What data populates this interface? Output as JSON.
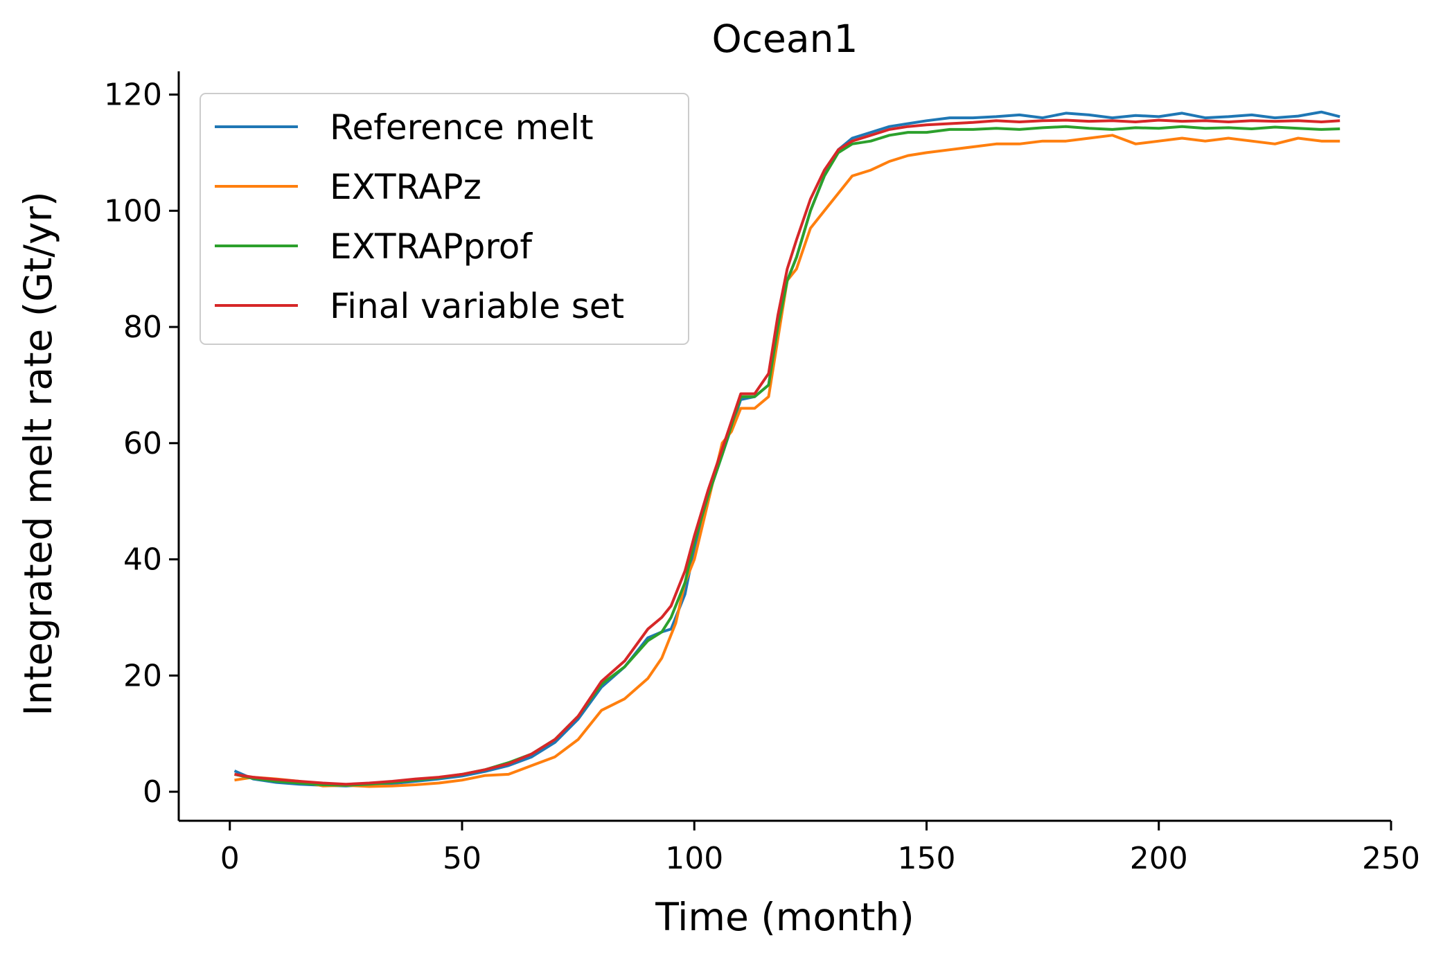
{
  "chart_data": {
    "type": "line",
    "title": "Ocean1",
    "xlabel": "Time (month)",
    "ylabel": "Integrated melt rate (Gt/yr)",
    "xlim": [
      -11,
      250
    ],
    "ylim": [
      -5,
      124
    ],
    "xticks": [
      0,
      50,
      100,
      150,
      200,
      250
    ],
    "yticks": [
      0,
      20,
      40,
      60,
      80,
      100,
      120
    ],
    "grid": false,
    "legend_position": "upper-left",
    "series": [
      {
        "name": "Reference melt",
        "color": "#1f77b4",
        "x": [
          1,
          5,
          10,
          15,
          20,
          25,
          30,
          35,
          40,
          45,
          50,
          55,
          60,
          65,
          70,
          75,
          80,
          85,
          88,
          90,
          93,
          95,
          98,
          100,
          103,
          106,
          110,
          113,
          116,
          118,
          120,
          122,
          125,
          128,
          131,
          134,
          138,
          142,
          146,
          150,
          155,
          160,
          165,
          170,
          175,
          180,
          185,
          190,
          195,
          200,
          205,
          210,
          215,
          220,
          225,
          230,
          235,
          239
        ],
        "y": [
          3.6,
          2.2,
          1.6,
          1.3,
          1.1,
          1.0,
          1.2,
          1.4,
          1.8,
          2.2,
          2.7,
          3.5,
          4.5,
          6.0,
          8.5,
          12.5,
          18.0,
          21.5,
          24.5,
          26.5,
          27.5,
          28.0,
          34.0,
          42.0,
          51.0,
          58.0,
          67.5,
          68.0,
          70.0,
          80.0,
          88.0,
          92.0,
          100.0,
          106.0,
          110.5,
          112.5,
          113.5,
          114.5,
          115.0,
          115.5,
          116.0,
          116.0,
          116.2,
          116.5,
          116.0,
          116.8,
          116.5,
          116.0,
          116.4,
          116.2,
          116.8,
          116.0,
          116.2,
          116.5,
          116.0,
          116.3,
          117.0,
          116.2
        ]
      },
      {
        "name": "EXTRAPz",
        "color": "#ff7f0e",
        "x": [
          1,
          5,
          10,
          15,
          20,
          25,
          30,
          35,
          40,
          45,
          50,
          55,
          60,
          65,
          70,
          75,
          80,
          85,
          90,
          93,
          96,
          98,
          100,
          103,
          106,
          108,
          110,
          113,
          116,
          118,
          120,
          122,
          125,
          128,
          131,
          134,
          138,
          142,
          146,
          150,
          155,
          160,
          165,
          170,
          175,
          180,
          185,
          190,
          195,
          200,
          205,
          210,
          215,
          220,
          225,
          230,
          235,
          239
        ],
        "y": [
          2.0,
          2.5,
          2.2,
          1.8,
          1.0,
          1.1,
          0.9,
          1.0,
          1.2,
          1.5,
          2.0,
          2.8,
          3.0,
          4.5,
          6.0,
          9.0,
          14.0,
          16.0,
          19.5,
          23.0,
          29.0,
          36.0,
          40.0,
          50.0,
          60.0,
          62.0,
          66.0,
          66.0,
          68.0,
          78.0,
          88.0,
          90.0,
          97.0,
          100.0,
          103.0,
          106.0,
          107.0,
          108.5,
          109.5,
          110.0,
          110.5,
          111.0,
          111.5,
          111.5,
          112.0,
          112.0,
          112.5,
          113.0,
          111.5,
          112.0,
          112.5,
          112.0,
          112.5,
          112.0,
          111.5,
          112.5,
          112.0,
          112.0
        ]
      },
      {
        "name": "EXTRAPprof",
        "color": "#2ca02c",
        "x": [
          1,
          5,
          10,
          15,
          20,
          25,
          30,
          35,
          40,
          45,
          50,
          55,
          60,
          65,
          70,
          75,
          80,
          85,
          90,
          93,
          95,
          98,
          100,
          103,
          106,
          110,
          113,
          116,
          118,
          120,
          122,
          125,
          128,
          131,
          134,
          138,
          142,
          146,
          150,
          155,
          160,
          165,
          170,
          175,
          180,
          185,
          190,
          195,
          200,
          205,
          210,
          215,
          220,
          225,
          230,
          235,
          239
        ],
        "y": [
          3.0,
          2.3,
          1.8,
          1.5,
          1.2,
          1.1,
          1.3,
          1.6,
          2.0,
          2.4,
          3.0,
          3.8,
          5.0,
          6.5,
          9.0,
          13.0,
          18.5,
          21.5,
          26.0,
          27.5,
          30.0,
          36.0,
          43.0,
          51.0,
          58.0,
          68.0,
          68.0,
          70.0,
          80.0,
          88.0,
          92.0,
          100.0,
          106.0,
          110.0,
          111.5,
          112.0,
          113.0,
          113.5,
          113.5,
          114.0,
          114.0,
          114.2,
          114.0,
          114.3,
          114.5,
          114.2,
          114.0,
          114.3,
          114.2,
          114.5,
          114.2,
          114.3,
          114.1,
          114.4,
          114.2,
          114.0,
          114.1
        ]
      },
      {
        "name": "Final variable set",
        "color": "#d62728",
        "x": [
          1,
          5,
          10,
          15,
          20,
          25,
          30,
          35,
          40,
          45,
          50,
          55,
          60,
          65,
          70,
          75,
          80,
          85,
          90,
          93,
          95,
          98,
          100,
          103,
          106,
          110,
          113,
          116,
          118,
          120,
          122,
          125,
          128,
          131,
          134,
          138,
          142,
          146,
          150,
          155,
          160,
          165,
          170,
          175,
          180,
          185,
          190,
          195,
          200,
          205,
          210,
          215,
          220,
          225,
          230,
          235,
          239
        ],
        "y": [
          3.0,
          2.5,
          2.1,
          1.8,
          1.5,
          1.3,
          1.5,
          1.8,
          2.2,
          2.5,
          3.0,
          3.8,
          4.8,
          6.5,
          9.0,
          13.0,
          19.0,
          22.5,
          28.0,
          30.0,
          32.0,
          38.0,
          44.0,
          52.0,
          59.0,
          68.5,
          68.5,
          72.0,
          82.0,
          90.0,
          95.0,
          102.0,
          107.0,
          110.5,
          112.0,
          113.0,
          114.0,
          114.5,
          114.8,
          115.0,
          115.2,
          115.5,
          115.3,
          115.5,
          115.6,
          115.4,
          115.5,
          115.3,
          115.6,
          115.4,
          115.5,
          115.3,
          115.5,
          115.4,
          115.5,
          115.3,
          115.5
        ]
      }
    ]
  }
}
